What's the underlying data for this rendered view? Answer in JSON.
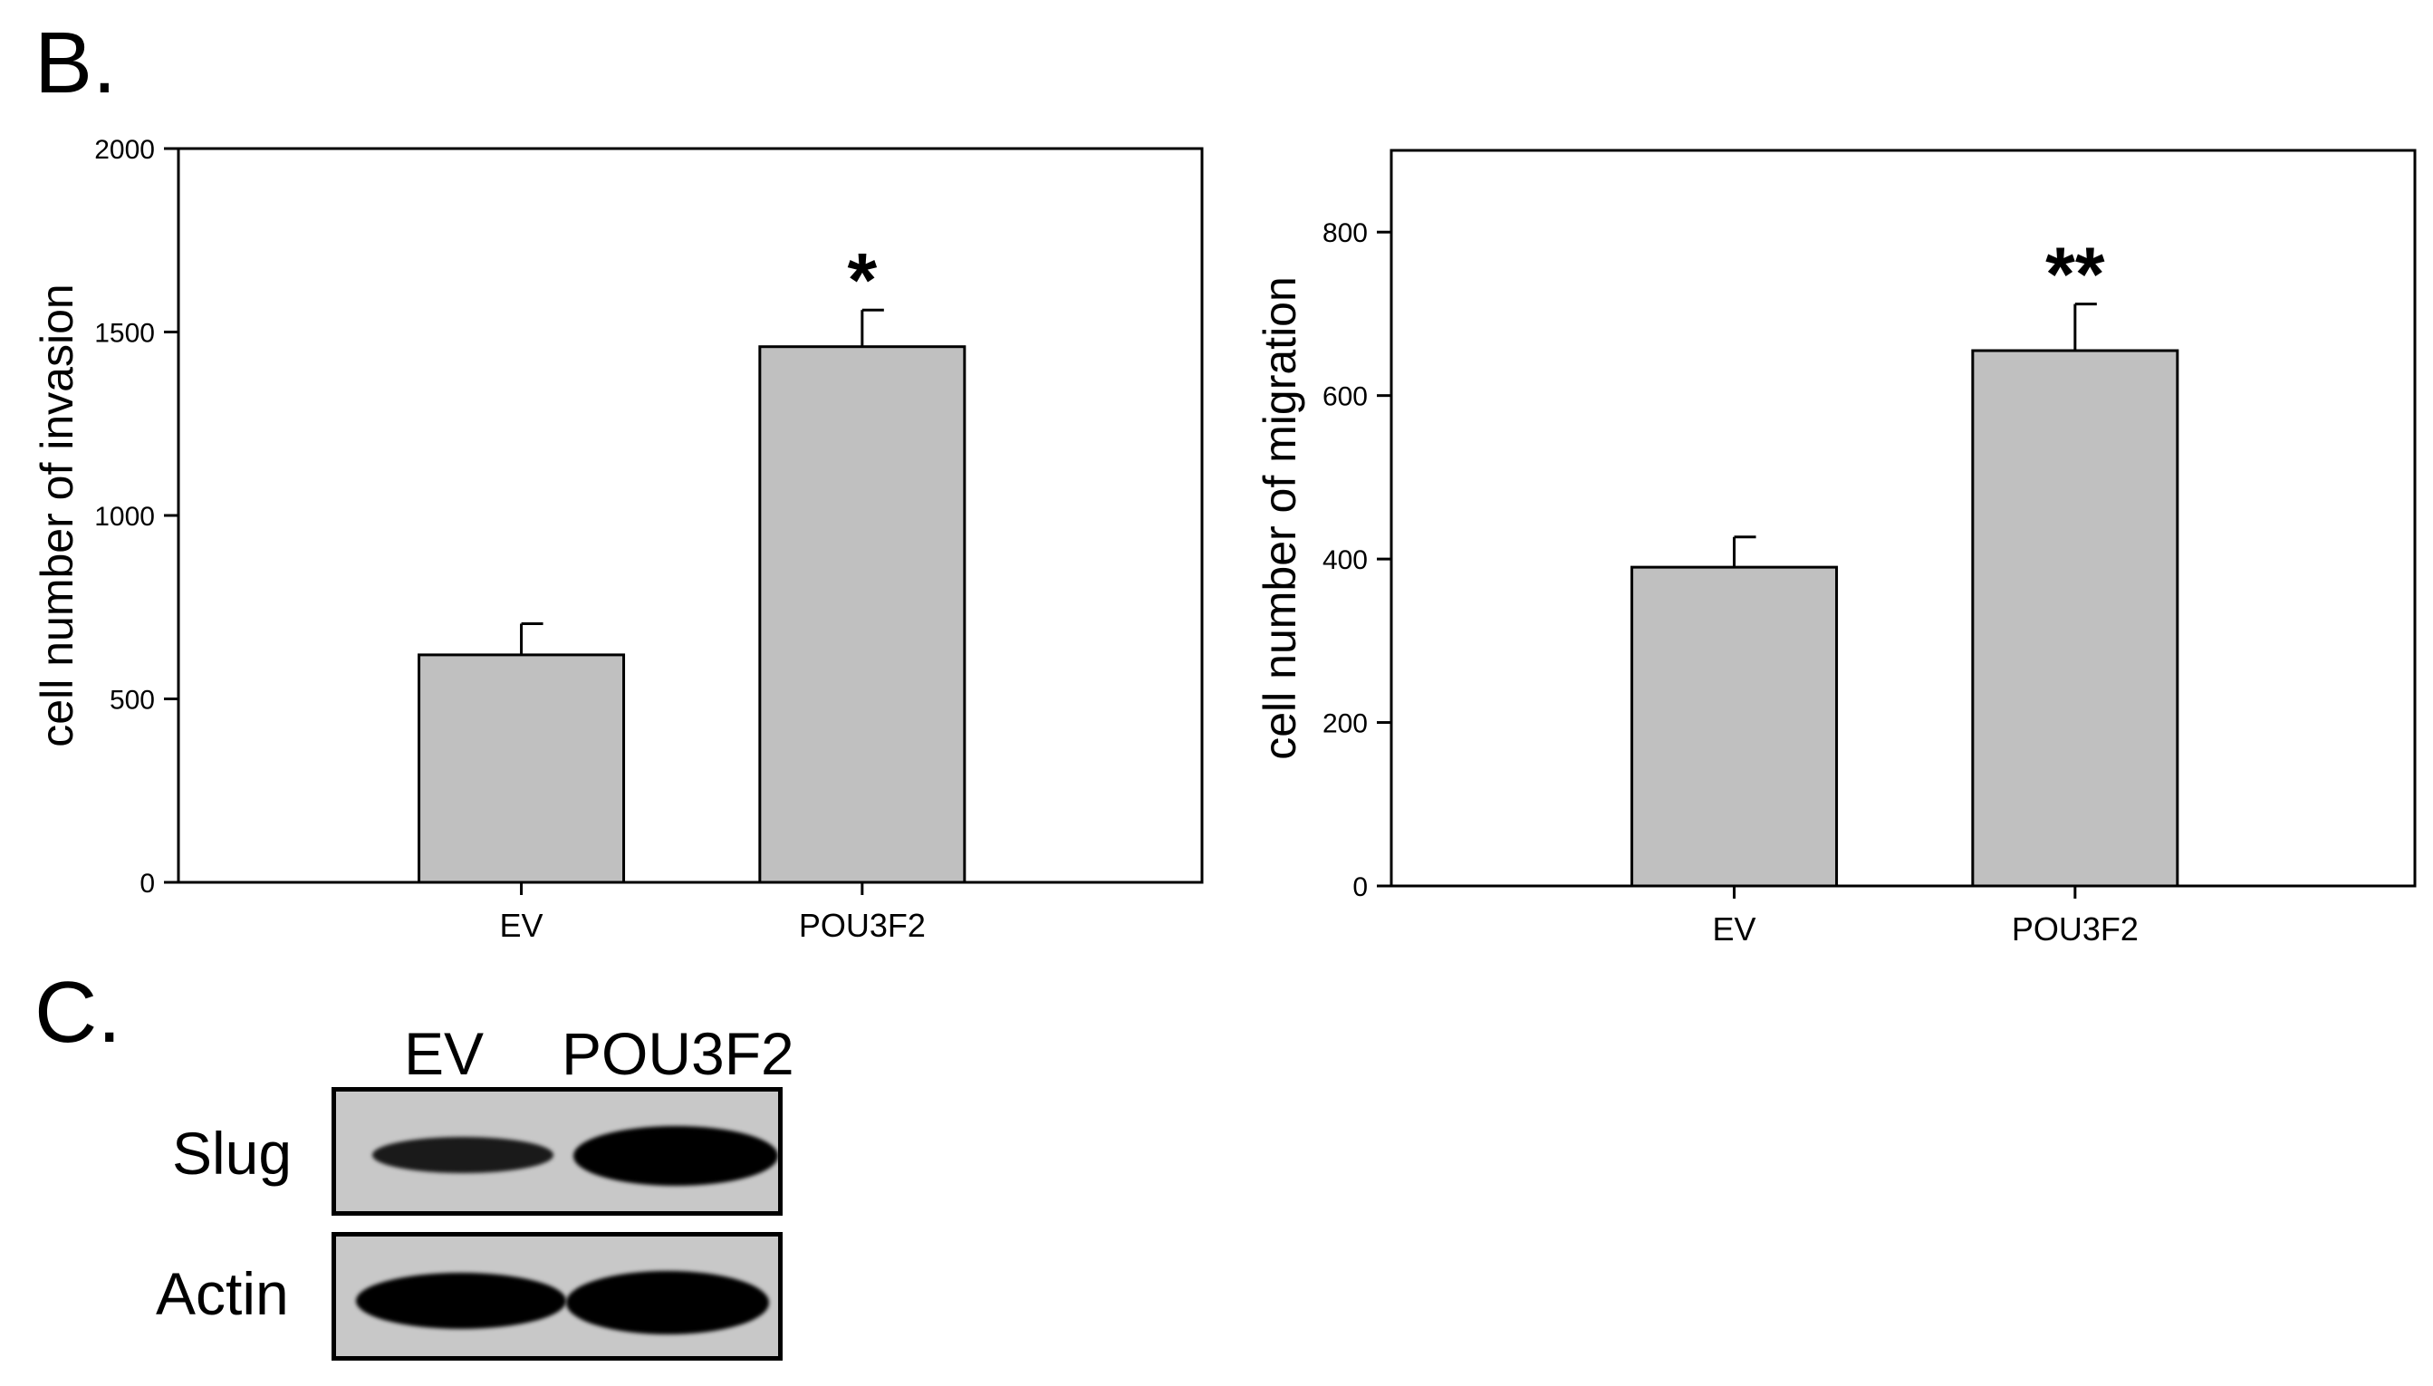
{
  "panels": {
    "b_label": "B.",
    "c_label": "C."
  },
  "chart_data": [
    {
      "type": "bar",
      "categories": [
        "EV",
        "POU3F2"
      ],
      "values": [
        620,
        1460
      ],
      "errors": [
        85,
        100
      ],
      "significance": [
        "",
        "*"
      ],
      "ylabel": "cell number of invasion",
      "ylim": [
        0,
        2000
      ],
      "yticks": [
        0,
        500,
        1000,
        1500,
        2000
      ],
      "bar_color": "#c0c0c0"
    },
    {
      "type": "bar",
      "categories": [
        "EV",
        "POU3F2"
      ],
      "values": [
        390,
        655
      ],
      "errors": [
        37,
        57
      ],
      "significance": [
        "",
        "**"
      ],
      "ylabel": "cell number of migration",
      "ylim": [
        0,
        900
      ],
      "yticks": [
        0,
        200,
        400,
        600,
        800
      ],
      "bar_color": "#c0c0c0"
    }
  ],
  "blot": {
    "lanes": [
      "EV",
      "POU3F2"
    ],
    "rows": [
      {
        "label": "Slug",
        "intensity": [
          0.55,
          0.85
        ]
      },
      {
        "label": "Actin",
        "intensity": [
          0.9,
          0.9
        ]
      }
    ]
  }
}
